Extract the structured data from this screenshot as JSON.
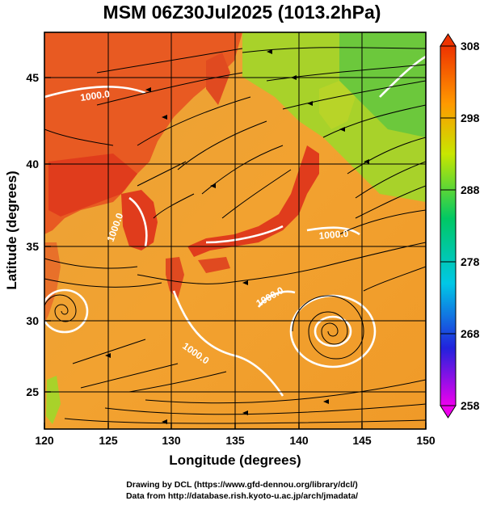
{
  "title": "MSM 06Z30Jul2025 (1013.2hPa)",
  "x_axis": {
    "label": "Longitude (degrees)",
    "range": [
      120,
      150
    ],
    "ticks": [
      "120",
      "125",
      "130",
      "135",
      "140",
      "145",
      "150"
    ]
  },
  "y_axis": {
    "label": "Latitude (degrees)",
    "range": [
      22.5,
      47.5
    ],
    "ticks": [
      "25",
      "30",
      "35",
      "40",
      "45"
    ]
  },
  "colorbar": {
    "range": [
      258,
      308
    ],
    "ticks": [
      "258",
      "268",
      "278",
      "288",
      "298",
      "308"
    ],
    "colors": [
      "#ee00ee",
      "#2222dd",
      "#00c8e6",
      "#00c864",
      "#c8e600",
      "#ff9900",
      "#ee3300"
    ]
  },
  "contour_labels": [
    "1000.0",
    "1000.0",
    "1000.0",
    "1000.0",
    "1000.0"
  ],
  "credits": {
    "line1": "Drawing by DCL (https://www.gfd-dennou.org/library/dcl/)",
    "line2": "Data from http://database.rish.kyoto-u.ac.jp/arch/jmadata/"
  },
  "colors": {
    "ocean": "#f0a030",
    "land_hot": "#e03c1c",
    "land_cool": "#8ccd28",
    "streamline": "#000000",
    "isobar": "#ffffff"
  }
}
